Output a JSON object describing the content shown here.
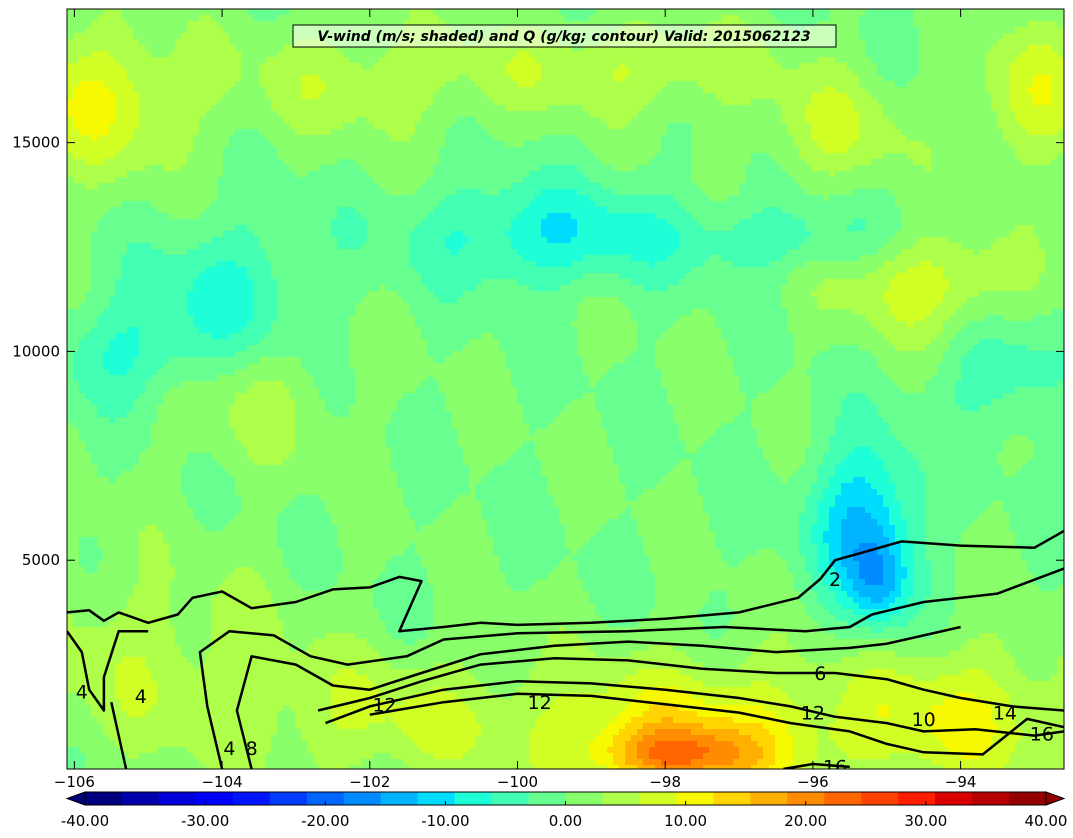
{
  "chart_data": {
    "type": "heatmap",
    "title": "V-wind (m/s; shaded) and Q (g/kg; contour) Valid: 2015062123",
    "xlabel": "",
    "ylabel": "",
    "x_range": [
      -106.1,
      -92.6
    ],
    "y_range": [
      0,
      18200
    ],
    "x_ticks": [
      -106,
      -104,
      -102,
      -100,
      -98,
      -96,
      -94
    ],
    "y_ticks": [
      5000,
      10000,
      15000
    ],
    "grid": false,
    "shaded_field": {
      "name": "V-wind (m/s)",
      "background_value": 0,
      "blobs": [
        {
          "x": -105.7,
          "y": 16000,
          "sx": 0.9,
          "sy": 1300,
          "v": 9
        },
        {
          "x": -102.2,
          "y": 16500,
          "sx": 1.2,
          "sy": 1000,
          "v": 5
        },
        {
          "x": -98.5,
          "y": 16800,
          "sx": 1.5,
          "sy": 800,
          "v": 6
        },
        {
          "x": -93.0,
          "y": 16100,
          "sx": 0.6,
          "sy": 1200,
          "v": 8
        },
        {
          "x": -95.7,
          "y": 15300,
          "sx": 0.7,
          "sy": 900,
          "v": 6
        },
        {
          "x": -99.6,
          "y": 12800,
          "sx": 1.3,
          "sy": 900,
          "v": -9
        },
        {
          "x": -96.3,
          "y": 12700,
          "sx": 1.0,
          "sy": 600,
          "v": -5
        },
        {
          "x": -103.9,
          "y": 11200,
          "sx": 0.8,
          "sy": 1400,
          "v": -7
        },
        {
          "x": -105.3,
          "y": 10000,
          "sx": 0.7,
          "sy": 900,
          "v": -6
        },
        {
          "x": -94.4,
          "y": 11600,
          "sx": 0.9,
          "sy": 900,
          "v": 8
        },
        {
          "x": -93.5,
          "y": 9500,
          "sx": 0.5,
          "sy": 1000,
          "v": -6
        },
        {
          "x": -103.6,
          "y": 9000,
          "sx": 0.8,
          "sy": 1200,
          "v": 5
        },
        {
          "x": -95.3,
          "y": 5900,
          "sx": 0.5,
          "sy": 1400,
          "v": -13
        },
        {
          "x": -95.1,
          "y": 4400,
          "sx": 0.3,
          "sy": 800,
          "v": -9
        },
        {
          "x": -105.0,
          "y": 2500,
          "sx": 1.5,
          "sy": 1800,
          "v": 5
        },
        {
          "x": -101.5,
          "y": 1200,
          "sx": 1.5,
          "sy": 1100,
          "v": 6
        },
        {
          "x": -97.6,
          "y": 900,
          "sx": 1.4,
          "sy": 1200,
          "v": 11
        },
        {
          "x": -94.0,
          "y": 1200,
          "sx": 1.2,
          "sy": 1300,
          "v": 9
        },
        {
          "x": -97.8,
          "y": 300,
          "sx": 0.8,
          "sy": 500,
          "v": 13
        }
      ]
    },
    "contours": [
      {
        "level": 2,
        "label": "2",
        "points": [
          [
            -106.1,
            3750
          ],
          [
            -105.8,
            3800
          ],
          [
            -105.6,
            3550
          ],
          [
            -105.4,
            3750
          ],
          [
            -105.0,
            3500
          ],
          [
            -104.6,
            3700
          ],
          [
            -104.4,
            4100
          ],
          [
            -104.0,
            4250
          ],
          [
            -103.6,
            3850
          ],
          [
            -103.0,
            4000
          ],
          [
            -102.5,
            4300
          ],
          [
            -102.0,
            4350
          ],
          [
            -101.6,
            4600
          ],
          [
            -101.3,
            4500
          ],
          [
            -101.6,
            3300
          ],
          [
            -101.0,
            3400
          ],
          [
            -100.5,
            3500
          ],
          [
            -100.0,
            3450
          ],
          [
            -99.0,
            3500
          ],
          [
            -98.0,
            3600
          ],
          [
            -97.0,
            3750
          ],
          [
            -96.2,
            4100
          ],
          [
            -95.9,
            4550
          ],
          [
            -95.7,
            5000
          ],
          [
            -95.3,
            5200
          ],
          [
            -94.8,
            5450
          ],
          [
            -94.0,
            5350
          ],
          [
            -93.0,
            5300
          ],
          [
            -92.6,
            5700
          ]
        ],
        "labels": [
          [
            -95.7,
            4550
          ]
        ]
      },
      {
        "level": 4,
        "label": "4",
        "points": [
          [
            -106.1,
            3300
          ],
          [
            -105.9,
            2800
          ],
          [
            -105.8,
            1900
          ],
          [
            -105.6,
            1400
          ],
          [
            -105.6,
            2200
          ],
          [
            -105.4,
            3300
          ],
          [
            -105.0,
            3300
          ]
        ],
        "labels": [
          [
            -105.9,
            1850
          ],
          [
            -105.1,
            1750
          ],
          [
            -103.9,
            500
          ]
        ]
      },
      {
        "level": 4,
        "label": "",
        "points": [
          [
            -105.3,
            0
          ],
          [
            -105.4,
            800
          ],
          [
            -105.5,
            1600
          ]
        ],
        "labels": []
      },
      {
        "level": 6,
        "label": "6",
        "points": [
          [
            -104.0,
            0
          ],
          [
            -104.2,
            1500
          ],
          [
            -104.3,
            2800
          ],
          [
            -103.9,
            3300
          ],
          [
            -103.3,
            3200
          ],
          [
            -102.8,
            2700
          ],
          [
            -102.3,
            2500
          ],
          [
            -101.5,
            2700
          ],
          [
            -101.0,
            3100
          ],
          [
            -100.0,
            3250
          ],
          [
            -98.5,
            3300
          ],
          [
            -97.2,
            3400
          ],
          [
            -96.1,
            3300
          ],
          [
            -95.5,
            3400
          ],
          [
            -95.2,
            3700
          ],
          [
            -94.5,
            4000
          ],
          [
            -93.5,
            4200
          ],
          [
            -92.6,
            4800
          ]
        ],
        "labels": [
          [
            -95.9,
            2300
          ]
        ]
      },
      {
        "level": 8,
        "label": "8",
        "points": [
          [
            -103.6,
            0
          ],
          [
            -103.8,
            1400
          ],
          [
            -103.6,
            2700
          ],
          [
            -103.0,
            2500
          ],
          [
            -102.5,
            2000
          ],
          [
            -102.0,
            1900
          ],
          [
            -101.3,
            2300
          ],
          [
            -100.5,
            2750
          ],
          [
            -99.5,
            2950
          ],
          [
            -98.5,
            3050
          ],
          [
            -97.5,
            2950
          ],
          [
            -96.5,
            2800
          ],
          [
            -95.5,
            2900
          ],
          [
            -95.0,
            3000
          ],
          [
            -94.5,
            3200
          ],
          [
            -94.0,
            3400
          ]
        ],
        "labels": [
          [
            -103.6,
            500
          ]
        ]
      },
      {
        "level": 10,
        "label": "10",
        "points": [
          [
            -102.7,
            1400
          ],
          [
            -102.0,
            1700
          ],
          [
            -101.3,
            2100
          ],
          [
            -100.5,
            2500
          ],
          [
            -99.5,
            2650
          ],
          [
            -98.5,
            2600
          ],
          [
            -97.5,
            2400
          ],
          [
            -96.5,
            2300
          ],
          [
            -95.7,
            2300
          ],
          [
            -95.0,
            2150
          ],
          [
            -94.5,
            1900
          ],
          [
            -94.0,
            1700
          ],
          [
            -93.3,
            1500
          ],
          [
            -92.6,
            1400
          ]
        ],
        "labels": [
          [
            -94.5,
            1200
          ]
        ]
      },
      {
        "level": 12,
        "label": "12",
        "points": [
          [
            -102.6,
            1100
          ],
          [
            -102.0,
            1500
          ],
          [
            -101.0,
            1900
          ],
          [
            -100.0,
            2100
          ],
          [
            -99.0,
            2050
          ],
          [
            -98.0,
            1900
          ],
          [
            -97.0,
            1700
          ],
          [
            -96.3,
            1500
          ],
          [
            -95.7,
            1250
          ],
          [
            -95.0,
            1100
          ],
          [
            -94.5,
            900
          ],
          [
            -93.8,
            950
          ],
          [
            -93.0,
            800
          ],
          [
            -92.6,
            900
          ]
        ],
        "labels": [
          [
            -101.8,
            1550
          ],
          [
            -99.7,
            1600
          ],
          [
            -96.0,
            1350
          ]
        ]
      },
      {
        "level": 14,
        "label": "14",
        "points": [
          [
            -102.0,
            1300
          ],
          [
            -101.0,
            1600
          ],
          [
            -100.0,
            1800
          ],
          [
            -99.0,
            1750
          ],
          [
            -98.0,
            1550
          ],
          [
            -97.0,
            1350
          ],
          [
            -96.3,
            1100
          ],
          [
            -95.5,
            900
          ],
          [
            -95.0,
            600
          ],
          [
            -94.5,
            400
          ],
          [
            -93.7,
            350
          ],
          [
            -93.1,
            1200
          ],
          [
            -92.6,
            1000
          ]
        ],
        "labels": [
          [
            -93.4,
            1350
          ]
        ]
      },
      {
        "level": 16,
        "label": "16",
        "points": [
          [
            -96.4,
            0
          ],
          [
            -96.0,
            120
          ],
          [
            -95.5,
            50
          ]
        ],
        "labels": [
          [
            -92.9,
            850
          ],
          [
            -95.7,
            60
          ]
        ]
      }
    ],
    "colorbar": {
      "min": -40,
      "max": 40,
      "ticks": [
        "-40.00",
        "-30.00",
        "-20.00",
        "-10.00",
        "0.00",
        "10.00",
        "20.00",
        "30.00",
        "40.00"
      ],
      "extend": "both",
      "colors": [
        "#00007f",
        "#0000ad",
        "#0000db",
        "#0000ff",
        "#0014ff",
        "#003cff",
        "#0064ff",
        "#008cff",
        "#00b4ff",
        "#00dcfe",
        "#1effd8",
        "#42ffb4",
        "#66ff90",
        "#8aff6c",
        "#adff49",
        "#d1ff25",
        "#f6f900",
        "#ffd400",
        "#ffaf00",
        "#ff8b00",
        "#ff6600",
        "#ff4200",
        "#ff1d00",
        "#db0000",
        "#b60000",
        "#920000"
      ]
    }
  }
}
